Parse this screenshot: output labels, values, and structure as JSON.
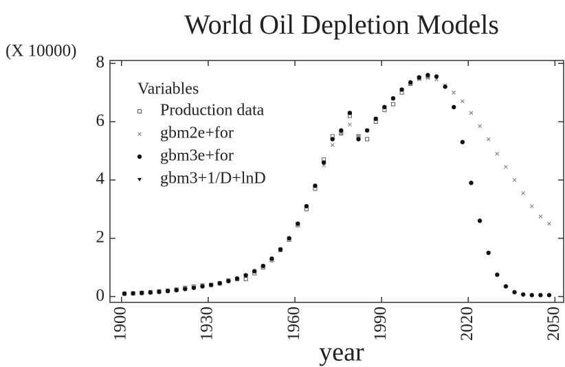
{
  "chart_data": {
    "type": "scatter",
    "title": "World Oil Depletion Models",
    "y_unit": "(X 10000)",
    "x_label": "year",
    "legend_title": "Variables",
    "xlim": [
      1896,
      2053
    ],
    "ylim": [
      -0.2,
      8.1
    ],
    "xticks": [
      1900,
      1930,
      1960,
      1990,
      2020,
      2050
    ],
    "yticks": [
      0,
      2,
      4,
      6,
      8
    ],
    "series": [
      {
        "name": "Production data",
        "marker": "square",
        "color": "#555555",
        "x": [
          1901,
          1904,
          1907,
          1910,
          1913,
          1916,
          1919,
          1922,
          1925,
          1928,
          1931,
          1934,
          1937,
          1940,
          1943,
          1946,
          1949,
          1952,
          1955,
          1958,
          1961,
          1964,
          1967,
          1970,
          1973,
          1976,
          1979,
          1982,
          1985,
          1988,
          1991,
          1994,
          1997,
          2000,
          2003,
          2006
        ],
        "values": [
          0.1,
          0.11,
          0.13,
          0.15,
          0.18,
          0.2,
          0.24,
          0.3,
          0.34,
          0.38,
          0.4,
          0.45,
          0.55,
          0.6,
          0.6,
          0.8,
          1.0,
          1.25,
          1.6,
          1.95,
          2.45,
          3.0,
          3.7,
          4.7,
          5.5,
          5.6,
          6.2,
          5.5,
          5.4,
          6.0,
          6.4,
          6.6,
          7.0,
          7.3,
          7.5,
          7.55
        ]
      },
      {
        "name": "gbm2e+for",
        "marker": "cross",
        "color": "#777777",
        "x": [
          1901,
          1904,
          1907,
          1910,
          1913,
          1916,
          1919,
          1922,
          1925,
          1928,
          1931,
          1934,
          1937,
          1940,
          1943,
          1946,
          1949,
          1952,
          1955,
          1958,
          1961,
          1964,
          1967,
          1970,
          1973,
          1976,
          1979,
          1982,
          1985,
          1988,
          1991,
          1994,
          1997,
          2000,
          2003,
          2006,
          2009,
          2012,
          2015,
          2018,
          2021,
          2024,
          2027,
          2030,
          2033,
          2036,
          2039,
          2042,
          2045,
          2048
        ],
        "values": [
          0.1,
          0.11,
          0.12,
          0.14,
          0.16,
          0.19,
          0.22,
          0.26,
          0.3,
          0.35,
          0.4,
          0.46,
          0.53,
          0.62,
          0.73,
          0.87,
          1.05,
          1.3,
          1.62,
          2.0,
          2.5,
          3.1,
          3.8,
          4.5,
          5.2,
          5.6,
          5.9,
          5.5,
          5.7,
          6.1,
          6.5,
          6.8,
          7.1,
          7.3,
          7.45,
          7.5,
          7.45,
          7.25,
          7.0,
          6.7,
          6.3,
          5.85,
          5.4,
          4.9,
          4.45,
          4.0,
          3.55,
          3.1,
          2.75,
          2.5
        ]
      },
      {
        "name": "gbm3e+for",
        "marker": "dot",
        "color": "#111111",
        "x": [
          1901,
          1904,
          1907,
          1910,
          1913,
          1916,
          1919,
          1922,
          1925,
          1928,
          1931,
          1934,
          1937,
          1940,
          1943,
          1946,
          1949,
          1952,
          1955,
          1958,
          1961,
          1964,
          1967,
          1970,
          1973,
          1976,
          1979,
          1982,
          1985,
          1988,
          1991,
          1994,
          1997,
          2000,
          2003,
          2006,
          2009,
          2012,
          2015,
          2018,
          2021,
          2024,
          2027,
          2030,
          2033,
          2036,
          2039,
          2042,
          2045,
          2048
        ],
        "values": [
          0.1,
          0.11,
          0.12,
          0.14,
          0.16,
          0.19,
          0.22,
          0.26,
          0.3,
          0.35,
          0.4,
          0.46,
          0.53,
          0.62,
          0.73,
          0.87,
          1.05,
          1.3,
          1.62,
          2.0,
          2.5,
          3.1,
          3.8,
          4.6,
          5.4,
          5.7,
          6.3,
          5.4,
          5.7,
          6.1,
          6.5,
          6.8,
          7.1,
          7.35,
          7.52,
          7.6,
          7.55,
          7.2,
          6.5,
          5.3,
          3.9,
          2.6,
          1.5,
          0.75,
          0.35,
          0.15,
          0.07,
          0.05,
          0.05,
          0.05
        ]
      },
      {
        "name": "gbm3+1/D+lnD",
        "marker": "triangle",
        "color": "#111111",
        "x": [
          1901,
          1907,
          1913,
          1919,
          1925,
          1931,
          1937,
          1943,
          1949,
          1955,
          1961,
          1967,
          1973,
          1979,
          1985,
          1991,
          1997,
          2003
        ],
        "values": [
          0.1,
          0.12,
          0.16,
          0.22,
          0.3,
          0.4,
          0.53,
          0.73,
          1.05,
          1.62,
          2.5,
          3.8,
          5.4,
          6.3,
          5.7,
          6.5,
          7.1,
          7.52
        ]
      }
    ]
  }
}
